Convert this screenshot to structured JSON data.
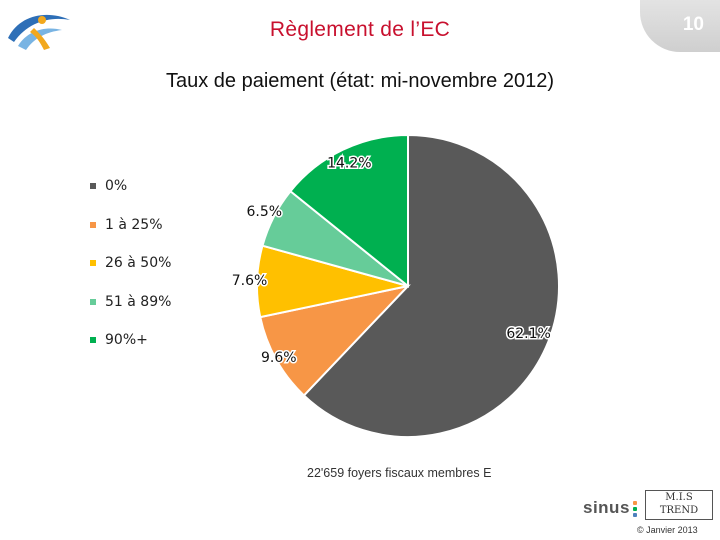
{
  "slide": {
    "title": "Règlement de l’EC",
    "number": "10"
  },
  "chart_data": {
    "type": "pie",
    "title": "Taux de paiement (état: mi-novembre 2012)",
    "start_angle_deg": 0,
    "direction": "clockwise",
    "legend_position": "left",
    "slices": [
      {
        "name": "0%",
        "value": 62.1,
        "label": "62.1%",
        "color": "#595959"
      },
      {
        "name": "1 à 25%",
        "value": 9.6,
        "label": "9.6%",
        "color": "#f79646"
      },
      {
        "name": "26 à 50%",
        "value": 7.6,
        "label": "7.6%",
        "color": "#ffc000"
      },
      {
        "name": "51 à 89%",
        "value": 6.5,
        "label": "6.5%",
        "color": "#66cc99"
      },
      {
        "name": "90%+",
        "value": 14.2,
        "label": "14.2%",
        "color": "#00b050"
      }
    ],
    "footnote": "22'659 foyers fiscaux membres E"
  },
  "footer": {
    "sinus_logo": "sinus",
    "sinus_dot_colors": [
      "#f79646",
      "#00b050",
      "#4f81bd"
    ],
    "mis_logo_line1": "M.I.S",
    "mis_logo_line2": "TREND",
    "copyright": "© Janvier 2013"
  },
  "colors": {
    "title": "#c8102e"
  }
}
